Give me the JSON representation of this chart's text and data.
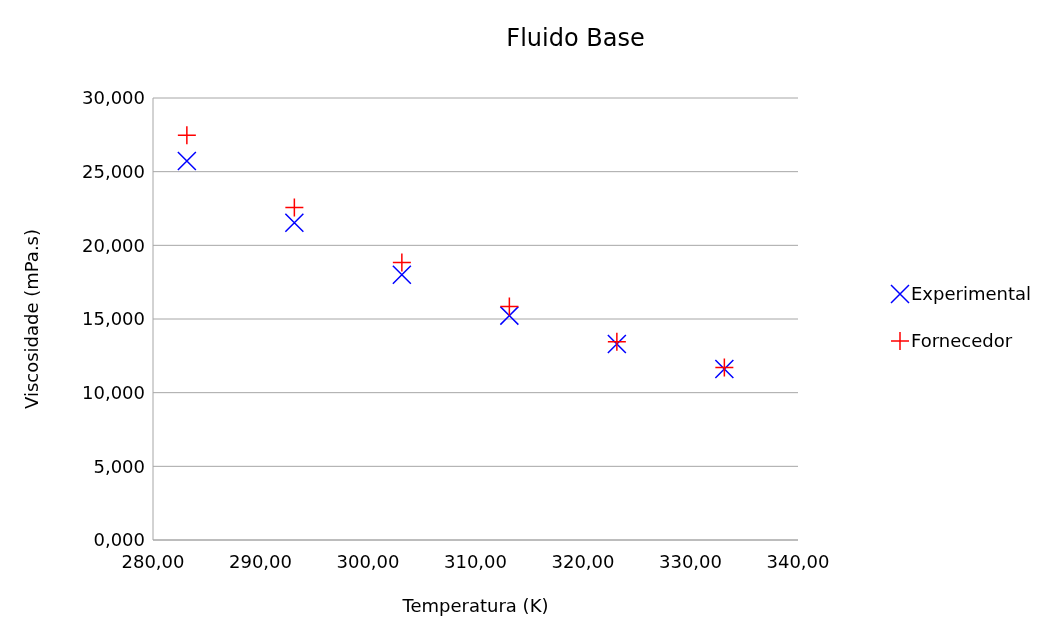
{
  "chart_data": {
    "type": "scatter",
    "title": "Fluido Base",
    "xlabel": "Temperatura (K)",
    "ylabel": "Viscosidade (mPa.s)",
    "x": [
      283.15,
      293.15,
      303.15,
      313.15,
      323.15,
      333.15
    ],
    "series": [
      {
        "name": "Experimental",
        "color": "#0000ff",
        "marker": "cross",
        "values": [
          25.72,
          21.53,
          18.0,
          15.23,
          13.3,
          11.6
        ]
      },
      {
        "name": "Fornecedor",
        "color": "#ff0000",
        "marker": "plus",
        "values": [
          27.47,
          22.57,
          18.84,
          15.84,
          13.46,
          11.7
        ]
      }
    ],
    "xlim": [
      280,
      340
    ],
    "xticks": [
      {
        "value": 280,
        "label": "280,00"
      },
      {
        "value": 290,
        "label": "290,00"
      },
      {
        "value": 300,
        "label": "300,00"
      },
      {
        "value": 310,
        "label": "310,00"
      },
      {
        "value": 320,
        "label": "320,00"
      },
      {
        "value": 330,
        "label": "330,00"
      },
      {
        "value": 340,
        "label": "340,00"
      }
    ],
    "ylim": [
      0,
      30
    ],
    "yticks": [
      {
        "value": 0,
        "label": "0,000"
      },
      {
        "value": 5,
        "label": "5,000"
      },
      {
        "value": 10,
        "label": "10,000"
      },
      {
        "value": 15,
        "label": "15,000"
      },
      {
        "value": 20,
        "label": "20,000"
      },
      {
        "value": 25,
        "label": "25,000"
      },
      {
        "value": 30,
        "label": "30,000"
      }
    ],
    "grid": "y",
    "legend": "right"
  }
}
